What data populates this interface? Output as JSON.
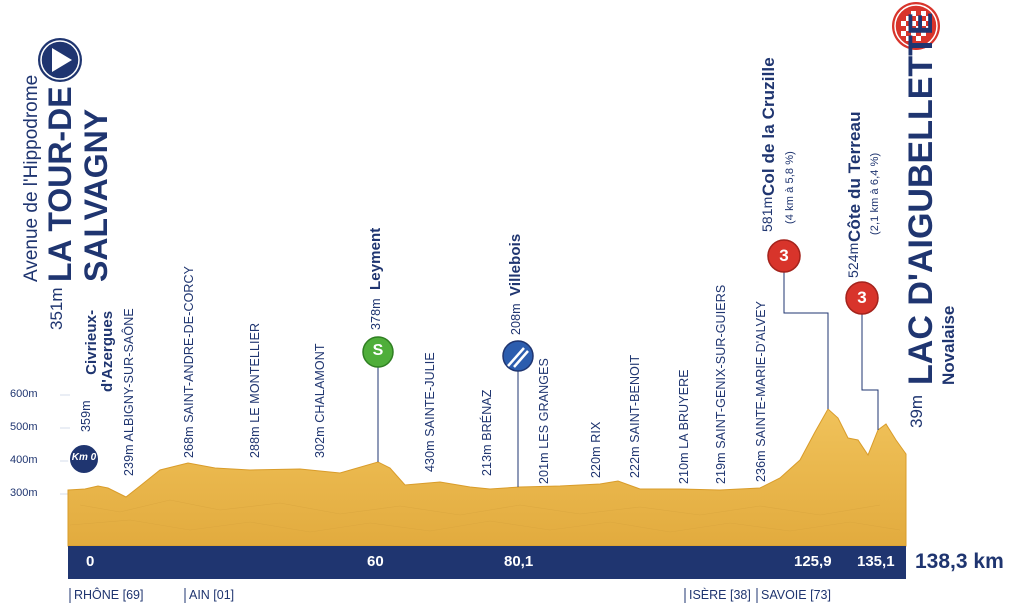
{
  "start": {
    "line1": "Avenue de l'Hippodrome",
    "line2": "LA TOUR-DE",
    "line3": "SALVAGNY",
    "elevation": "351m"
  },
  "finish": {
    "name": "LAC D'AIGUBELLETTE",
    "subtitle": "Novalaise",
    "elevation": "39m"
  },
  "km0_badge": "Km 0",
  "sprint_badge": "S",
  "climb_badge": "3",
  "elevation_axis": [
    "600m",
    "500m",
    "400m",
    "300m"
  ],
  "places": [
    {
      "text": "359m",
      "bold": "Civrieux-\nd'Azergues"
    },
    {
      "text": "239m ALBIGNY-SUR-SAÔNE"
    },
    {
      "text": "268m SAINT-ANDRE-DE-CORCY"
    },
    {
      "text": "288m LE MONTELLIER"
    },
    {
      "text": "302m CHALAMONT"
    },
    {
      "text": "378m",
      "bold": "Leyment"
    },
    {
      "text": "430m SAINTE-JULIE"
    },
    {
      "text": "213m BRÉNAZ"
    },
    {
      "text": "208m",
      "bold": "Villebois"
    },
    {
      "text": "201m LES GRANGES"
    },
    {
      "text": "220m RIX"
    },
    {
      "text": "222m SAINT-BENOIT"
    },
    {
      "text": "210m LA BRUYERE"
    },
    {
      "text": "219m SAINT-GENIX-SUR-GUIERS"
    },
    {
      "text": "236m SAINTE-MARIE-D'ALVEY"
    }
  ],
  "climbs": [
    {
      "elev": "581m",
      "name": "Col de la Cruzille",
      "detail": "(4 km à 5,8 %)"
    },
    {
      "elev": "524m",
      "name": "Côte du Terreau",
      "detail": "(2,1 km à 6,4 %)"
    }
  ],
  "km_markers": [
    "0",
    "60",
    "80,1",
    "125,9",
    "135,1"
  ],
  "total_distance": "138,3 km",
  "regions": [
    "RHÔNE [69]",
    "AIN [01]",
    "ISÈRE [38]",
    "SAVOIE [73]"
  ],
  "colors": {
    "navy": "#1f3570",
    "profile_fill": "#eab84a",
    "profile_edge": "#d99c2a",
    "sprint_green": "#4fae3a",
    "climb_red": "#d8342b"
  }
}
